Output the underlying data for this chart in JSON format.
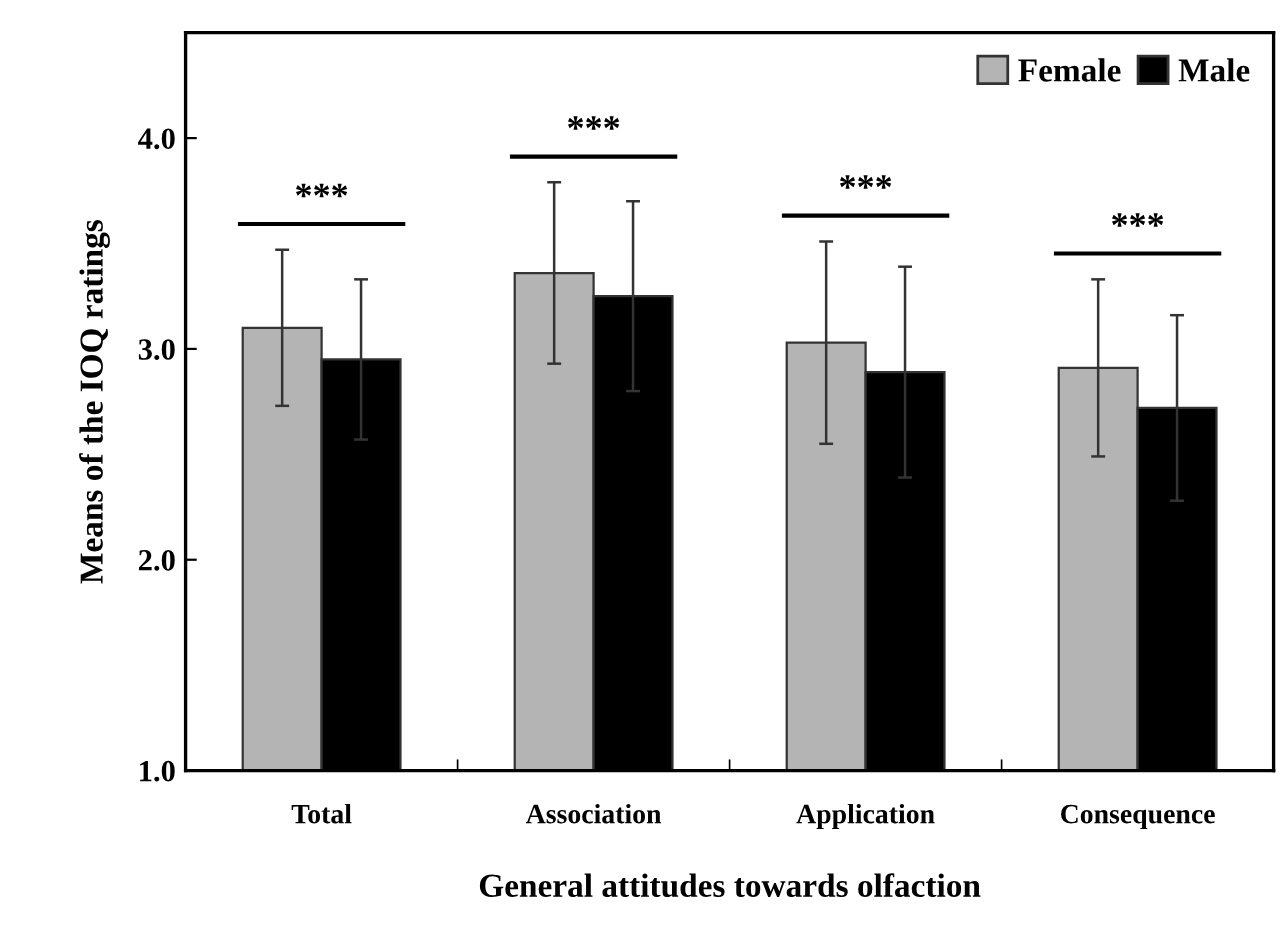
{
  "chart_data": {
    "type": "bar",
    "xlabel": "General attitudes towards olfaction",
    "ylabel": "Means of the IOQ ratings",
    "categories": [
      "Total",
      "Association",
      "Application",
      "Consequence"
    ],
    "series": [
      {
        "name": "Female",
        "color": "#b4b4b4",
        "values": [
          3.1,
          3.36,
          3.03,
          2.91
        ],
        "errors": [
          0.37,
          0.43,
          0.48,
          0.42
        ]
      },
      {
        "name": "Male",
        "color": "#000000",
        "values": [
          2.95,
          3.25,
          2.89,
          2.72
        ],
        "errors": [
          0.38,
          0.45,
          0.5,
          0.44
        ]
      }
    ],
    "ylim": [
      1.0,
      4.5
    ],
    "yticks": [
      {
        "value": 1.0,
        "label": "1.0"
      },
      {
        "value": 2.0,
        "label": "2.0"
      },
      {
        "value": 3.0,
        "label": "3.0"
      },
      {
        "value": 4.0,
        "label": "4.0"
      }
    ],
    "annotations": [
      "***",
      "***",
      "***",
      "***"
    ],
    "legend": "top right",
    "grid": false
  }
}
